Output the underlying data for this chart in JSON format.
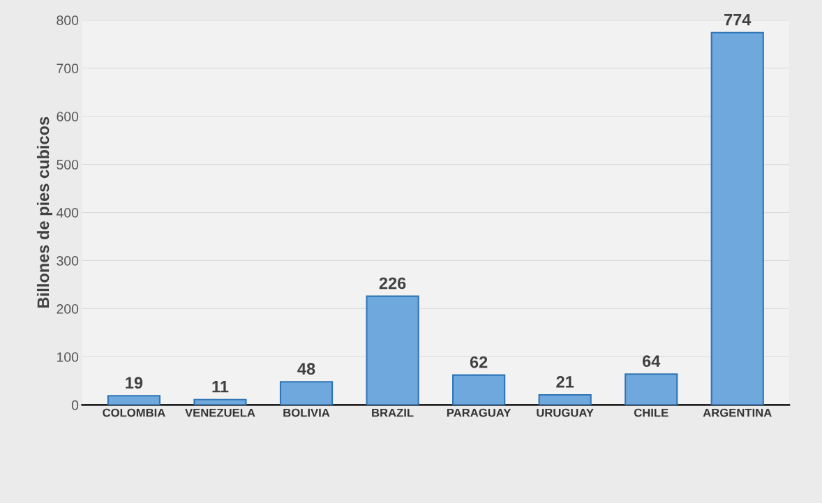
{
  "chart_data": {
    "type": "bar",
    "ylabel": "Billones de pies cubicos",
    "categories": [
      "COLOMBIA",
      "VENEZUELA",
      "BOLIVIA",
      "BRAZIL",
      "PARAGUAY",
      "URUGUAY",
      "CHILE",
      "ARGENTINA"
    ],
    "values": [
      19,
      11,
      48,
      226,
      62,
      21,
      64,
      774
    ],
    "color": "#6fa8dc",
    "ylim": [
      0,
      800
    ],
    "yticks": [
      0,
      100,
      200,
      300,
      400,
      500,
      600,
      700,
      800
    ],
    "grid": "y",
    "data_labels": true
  }
}
